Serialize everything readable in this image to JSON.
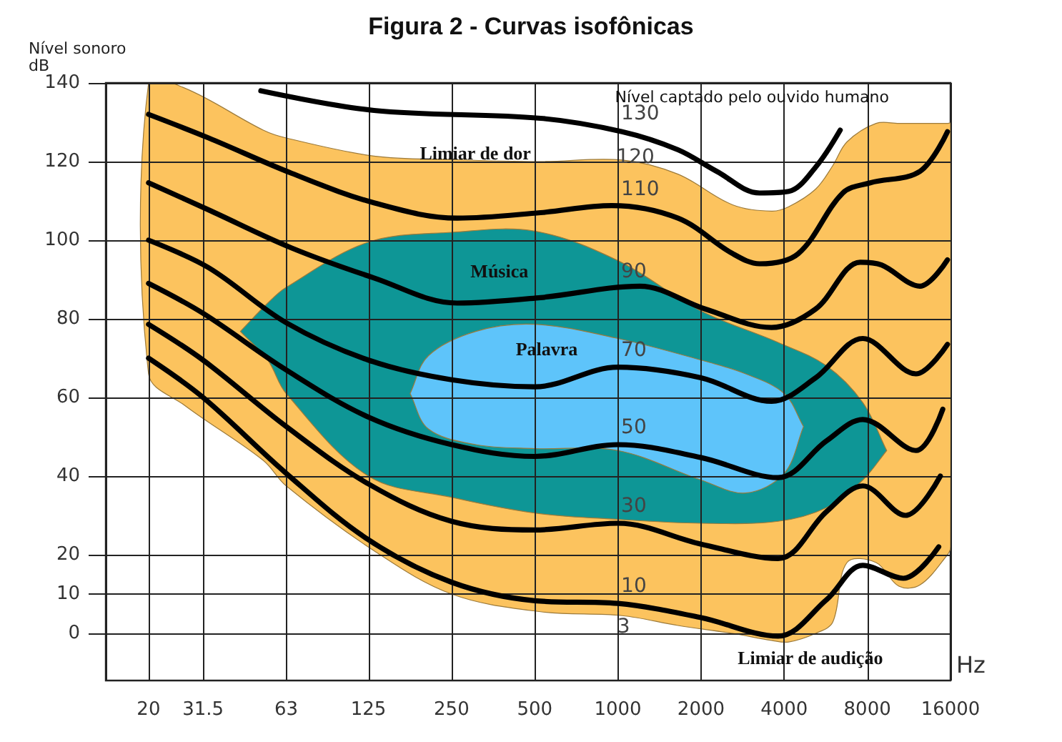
{
  "chart_data": {
    "type": "line",
    "title": "Figura 2 - Curvas isofônicas",
    "xlabel": "Hz",
    "ylabel": "Nível sonoro\ndB",
    "log": "x",
    "grid": true,
    "xlim": [
      14,
      16000
    ],
    "xticks": [
      20,
      31.5,
      63,
      125,
      250,
      500,
      1000,
      2000,
      4000,
      8000,
      16000
    ],
    "ylim": [
      -12,
      140
    ],
    "yticks": [
      0,
      10,
      20,
      40,
      60,
      80,
      100,
      120,
      140
    ],
    "series": [
      {
        "color": "#fcc35e",
        "x": [
          20,
          27,
          52,
          63,
          131,
          250,
          525,
          1036,
          1650,
          2600,
          3600,
          4150,
          5200,
          6000,
          6750,
          8600,
          10400,
          12400,
          15600,
          16000
        ],
        "values": [
          null,
          null,
          null,
          null,
          null,
          null,
          null,
          null,
          null,
          null,
          null,
          null,
          null,
          null,
          null,
          null,
          null,
          null,
          null,
          null
        ],
        "upper": [
          140,
          138.7,
          128,
          126,
          121.4,
          120.5,
          120,
          120.4,
          116.8,
          109,
          107.4,
          108.5,
          113,
          119,
          125,
          129.7,
          129.7,
          129.7,
          129.7,
          129.7
        ],
        "lower": [
          66,
          58,
          44,
          37.5,
          21,
          10,
          5.5,
          4.5,
          2,
          0,
          -1.8,
          -2.2,
          0,
          2.9,
          18,
          18,
          12,
          12.3,
          20,
          22
        ]
      },
      {
        "color": "#0e9696",
        "x": [
          43,
          54,
          63,
          125,
          250,
          500,
          1000,
          2000,
          3800,
          5700,
          7700,
          9400
        ],
        "values": [
          null,
          null,
          null,
          null,
          null,
          null,
          null,
          null,
          null,
          null,
          null,
          null
        ],
        "upper": [
          76.8,
          84,
          88,
          99.5,
          102,
          102.3,
          94.8,
          82,
          74,
          68,
          58.7,
          46.5
        ],
        "lower": [
          76.8,
          69.5,
          61,
          40,
          34.6,
          30.6,
          29,
          28,
          28.5,
          32,
          39,
          46.5
        ]
      },
      {
        "color": "#5ec4fa",
        "x": [
          177,
          206,
          306,
          500,
          1000,
          2000,
          2900,
          4000,
          4700
        ],
        "values": [
          null,
          null,
          null,
          null,
          null,
          null,
          null,
          null,
          null
        ],
        "upper": [
          61,
          70.6,
          76.8,
          78.6,
          75,
          69.5,
          66,
          61,
          52.6
        ],
        "lower": [
          61,
          52,
          48,
          47,
          46.5,
          39,
          35.7,
          40.7,
          52.6
        ]
      },
      {
        "name": "130",
        "color": "#000000",
        "x": [
          51,
          131,
          525,
          1036,
          1650,
          2280,
          3260,
          4150,
          5200,
          6380
        ],
        "values": [
          138,
          133,
          131,
          127.6,
          123,
          117.5,
          112,
          112.4,
          118.6,
          128
        ]
      },
      {
        "name": "110",
        "color": "#000000",
        "x": [
          20,
          33,
          66,
          131,
          262,
          525,
          950,
          1650,
          2600,
          3260,
          4500,
          6520,
          8200,
          12400,
          15600
        ],
        "values": [
          132,
          126,
          117,
          109.5,
          105.6,
          107,
          108.8,
          105.6,
          96.6,
          94,
          96.6,
          112,
          114.6,
          117.5,
          127.6
        ]
      },
      {
        "name": "90",
        "color": "#000000",
        "x": [
          20,
          33,
          66,
          131,
          262,
          525,
          1200,
          2070,
          3600,
          5200,
          7540,
          9000,
          12400,
          15600
        ],
        "values": [
          114.6,
          107.7,
          98,
          90.4,
          84,
          85.4,
          88.3,
          82.5,
          77.8,
          82.5,
          94.4,
          93.7,
          88.3,
          95
        ]
      },
      {
        "name": "70",
        "color": "#000000",
        "x": [
          20,
          33,
          63,
          125,
          250,
          500,
          1000,
          2000,
          3600,
          5200,
          7700,
          12000,
          15600
        ],
        "values": [
          100,
          93,
          79,
          69.5,
          64.5,
          62.7,
          67.7,
          65,
          59,
          65,
          75,
          66,
          73.5
        ]
      },
      {
        "name": "50",
        "color": "#000000",
        "x": [
          20,
          31.5,
          63,
          125,
          250,
          500,
          1000,
          2000,
          3800,
          5700,
          7700,
          12000,
          15000
        ],
        "values": [
          89,
          81.4,
          67,
          55,
          48,
          45,
          48,
          44.7,
          39.6,
          49,
          54.4,
          46.5,
          57
        ]
      },
      {
        "name": "30",
        "color": "#000000",
        "x": [
          20,
          31.5,
          63,
          125,
          250,
          500,
          1000,
          2000,
          3800,
          5700,
          7700,
          11000,
          14700
        ],
        "values": [
          78.6,
          69.5,
          52.6,
          38,
          28.5,
          26.3,
          28,
          22.7,
          19,
          31,
          37.5,
          30,
          40
        ]
      },
      {
        "name": "10",
        "color": "#000000",
        "x": [
          20,
          31.5,
          63,
          125,
          250,
          500,
          1000,
          2000,
          3800,
          5700,
          7700,
          10800,
          14500
        ],
        "values": [
          70,
          60,
          40.7,
          23.8,
          13,
          8.3,
          7.6,
          4,
          -0.7,
          8.6,
          17.3,
          14,
          22
        ]
      }
    ],
    "annotations": [
      "Nível captado pelo ouvido humano",
      "120",
      "3",
      "Limiar de dor",
      "Limiar de audição",
      "Música",
      "Palavra"
    ]
  }
}
